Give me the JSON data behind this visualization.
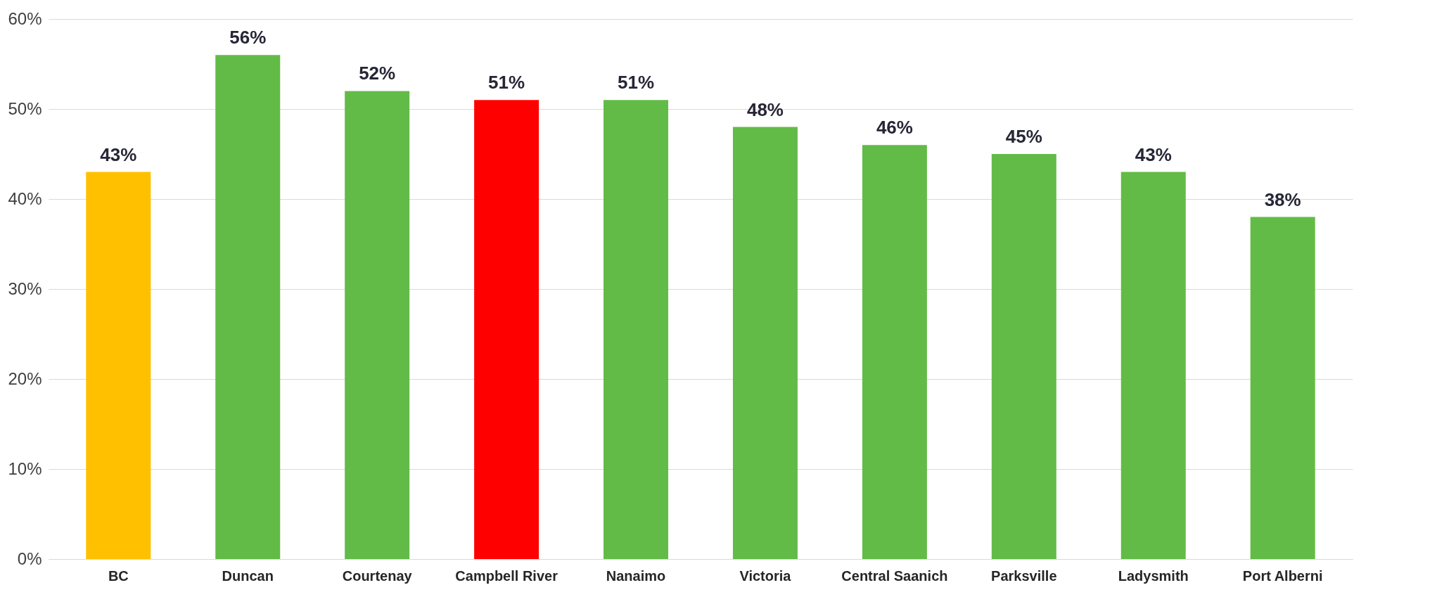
{
  "chart_data": {
    "type": "bar",
    "categories": [
      "BC",
      "Duncan",
      "Courtenay",
      "Campbell River",
      "Nanaimo",
      "Victoria",
      "Central Saanich",
      "Parksville",
      "Ladysmith",
      "Port Alberni"
    ],
    "values": [
      43,
      56,
      52,
      51,
      51,
      48,
      46,
      45,
      43,
      38
    ],
    "colors": [
      "#ffc000",
      "#62bb46",
      "#62bb46",
      "#ff0000",
      "#62bb46",
      "#62bb46",
      "#62bb46",
      "#62bb46",
      "#62bb46",
      "#62bb46"
    ],
    "value_labels": [
      "43%",
      "56%",
      "52%",
      "51%",
      "51%",
      "48%",
      "46%",
      "45%",
      "43%",
      "38%"
    ],
    "ylim": [
      0,
      60
    ],
    "yticks": [
      {
        "value": 0,
        "label": "0%"
      },
      {
        "value": 10,
        "label": "10%"
      },
      {
        "value": 20,
        "label": "20%"
      },
      {
        "value": 30,
        "label": "30%"
      },
      {
        "value": 40,
        "label": "40%"
      },
      {
        "value": 50,
        "label": "50%"
      },
      {
        "value": 60,
        "label": "60%"
      }
    ],
    "grid": "y",
    "legend": false
  }
}
